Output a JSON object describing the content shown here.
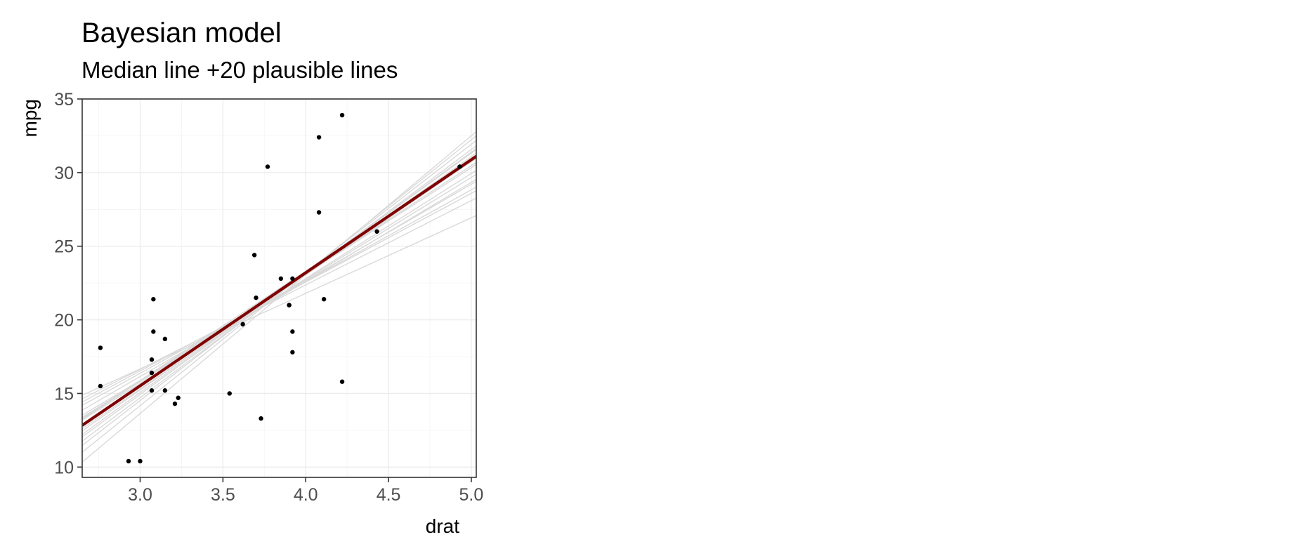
{
  "chart_data": {
    "type": "scatter",
    "title": "Bayesian model",
    "subtitle": "Median line +20 plausible lines",
    "xlabel": "drat",
    "ylabel": "mpg",
    "xlim": [
      2.65,
      5.03
    ],
    "ylim": [
      9.3,
      35.0
    ],
    "x_ticks": [
      3.0,
      3.5,
      4.0,
      4.5,
      5.0
    ],
    "x_tick_labels": [
      "3.0",
      "3.5",
      "4.0",
      "4.5",
      "5.0"
    ],
    "y_ticks": [
      10,
      15,
      20,
      25,
      30,
      35
    ],
    "y_tick_labels": [
      "10",
      "15",
      "20",
      "25",
      "30",
      "35"
    ],
    "grid": true,
    "legend": "none",
    "points": {
      "x": [
        3.9,
        3.9,
        3.85,
        3.08,
        3.15,
        2.76,
        3.21,
        3.69,
        3.92,
        3.92,
        3.92,
        3.07,
        3.07,
        3.07,
        2.93,
        3.0,
        3.23,
        4.08,
        4.93,
        4.22,
        3.7,
        2.76,
        3.15,
        3.73,
        3.08,
        4.08,
        4.43,
        3.77,
        4.22,
        3.62,
        3.54,
        4.11
      ],
      "y": [
        21.0,
        21.0,
        22.8,
        21.4,
        18.7,
        18.1,
        14.3,
        24.4,
        22.8,
        19.2,
        17.8,
        16.4,
        17.3,
        15.2,
        10.4,
        10.4,
        14.7,
        32.4,
        30.4,
        33.9,
        21.5,
        15.5,
        15.2,
        13.3,
        19.2,
        27.3,
        26.0,
        30.4,
        15.8,
        19.7,
        15.0,
        21.4
      ],
      "color": "#000000"
    },
    "median_line": {
      "intercept": -7.52,
      "slope": 7.68,
      "color": "#7f0000"
    },
    "plausible_lines": {
      "color": "#d9d9d9",
      "lines": [
        {
          "intercept": -14.65,
          "slope": 9.43
        },
        {
          "intercept": -12.92,
          "slope": 9.03
        },
        {
          "intercept": -11.58,
          "slope": 8.7
        },
        {
          "intercept": -10.58,
          "slope": 8.43
        },
        {
          "intercept": -9.76,
          "slope": 8.23
        },
        {
          "intercept": -9.33,
          "slope": 8.13
        },
        {
          "intercept": -8.56,
          "slope": 7.93
        },
        {
          "intercept": -7.88,
          "slope": 7.73
        },
        {
          "intercept": -7.4,
          "slope": 7.63
        },
        {
          "intercept": -6.41,
          "slope": 7.43
        },
        {
          "intercept": -6.18,
          "slope": 7.33
        },
        {
          "intercept": -5.82,
          "slope": 7.23
        },
        {
          "intercept": -5.71,
          "slope": 7.13
        },
        {
          "intercept": -4.98,
          "slope": 6.93
        },
        {
          "intercept": -4.31,
          "slope": 6.73
        },
        {
          "intercept": -3.44,
          "slope": 6.53
        },
        {
          "intercept": -2.32,
          "slope": 6.23
        },
        {
          "intercept": -1.56,
          "slope": 6.03
        },
        {
          "intercept": -0.55,
          "slope": 5.73
        },
        {
          "intercept": 1.28,
          "slope": 5.13
        }
      ]
    }
  }
}
